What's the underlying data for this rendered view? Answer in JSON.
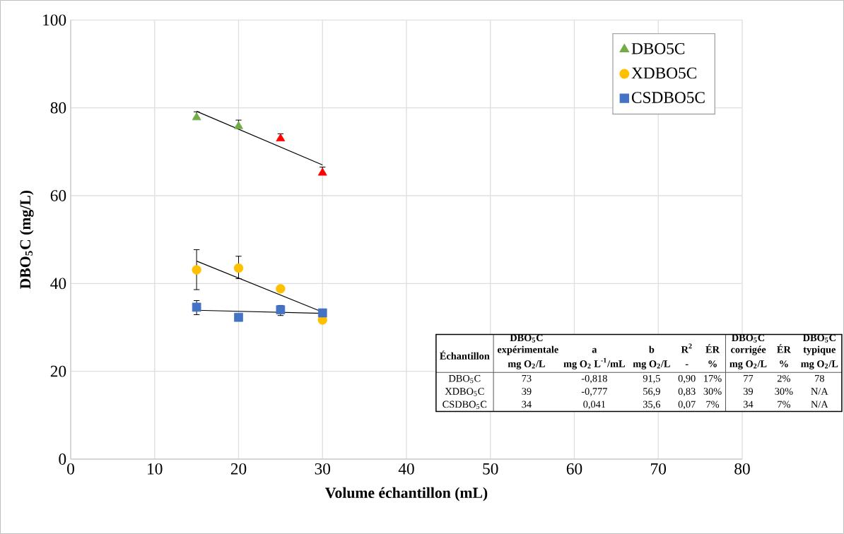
{
  "chart_data": {
    "type": "scatter",
    "xlabel": "Volume échantillon (mL)",
    "ylabel": "DBO$_{5}$C (mg/L)",
    "xlim": [
      0,
      80
    ],
    "xticks": [
      0,
      10,
      20,
      30,
      40,
      50,
      60,
      70,
      80
    ],
    "ylim": [
      0,
      100
    ],
    "yticks": [
      0,
      20,
      40,
      60,
      80,
      100
    ],
    "grid": true,
    "legend": "top right",
    "series": [
      {
        "name": "DBO5C",
        "marker": "triangle",
        "color": "#70ad47",
        "colors": [
          "#70ad47",
          "#70ad47",
          "#ff0000",
          "#ff0000"
        ],
        "x": [
          15,
          20,
          25,
          30
        ],
        "values": [
          77.8,
          75.8,
          73.0,
          65.2
        ],
        "errors": [
          [
            77.8,
            79.1
          ],
          [
            75.8,
            77.2
          ],
          [
            73.0,
            74.1
          ],
          [
            65.2,
            66.5
          ]
        ]
      },
      {
        "name": "XDBO5C",
        "marker": "circle",
        "color": "#ffc000",
        "x": [
          15,
          20,
          25,
          30
        ],
        "values": [
          43.1,
          43.5,
          38.8,
          31.7
        ],
        "errors": [
          [
            38.6,
            47.7
          ],
          [
            41.1,
            46.2
          ],
          null,
          null
        ]
      },
      {
        "name": "CSDBO5C",
        "marker": "square",
        "color": "#4472c4",
        "x": [
          15,
          20,
          25,
          30
        ],
        "values": [
          34.6,
          32.3,
          34.0,
          33.3
        ],
        "errors": [
          [
            32.9,
            36.1
          ],
          null,
          [
            32.7,
            35.0
          ],
          null
        ]
      },
      {
        "type": "line",
        "color": "#000000",
        "x": [
          15,
          30
        ],
        "values": [
          79.2,
          67.0
        ]
      },
      {
        "type": "line",
        "color": "#000000",
        "x": [
          15,
          30
        ],
        "values": [
          45.1,
          33.5
        ]
      },
      {
        "type": "line",
        "color": "#000000",
        "x": [
          15,
          30
        ],
        "values": [
          33.9,
          33.2
        ]
      }
    ],
    "annotations": [
      "Échantillon",
      "DBO$_{5}$C expérimentale",
      "a",
      "b",
      "R$^{2}$",
      "ÉR",
      "DBO$_{5}$C corrigée",
      "ÉR",
      "DBO$_{5}$C typique",
      "mg O$_{2}$/L",
      "mg O$_{2}$ L$^{-1}$/mL",
      "mg O$_{2}$/L",
      "-",
      "%",
      "mg O$_{2}$/L",
      "%",
      "mg O$_{2}$/L",
      "DBO$_{5}$C",
      "73",
      "-0,818",
      "91,5",
      "0,90",
      "17%",
      "77",
      "2%",
      "78",
      "XDBO$_{5}$C",
      "39",
      "-0,777",
      "56,9",
      "0,83",
      "30%",
      "39",
      "30%",
      "N/A",
      "CSDBO$_{5}$C",
      "34",
      "0,041",
      "35,6",
      "0,07",
      "7%",
      "34",
      "7%",
      "N/A"
    ]
  }
}
